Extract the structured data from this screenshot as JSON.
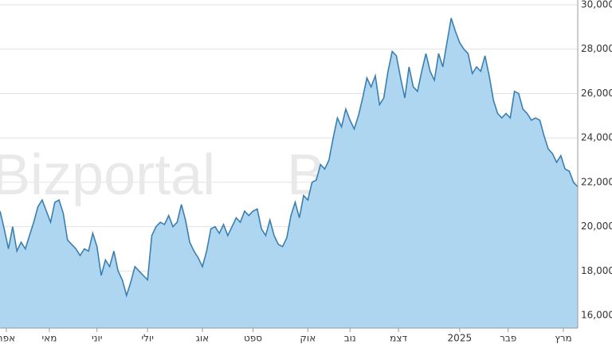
{
  "chart_data": {
    "type": "area",
    "watermark": "Bizportal",
    "x": [
      0,
      1,
      2,
      3,
      4,
      5,
      6,
      7,
      8,
      9,
      10,
      11,
      12,
      13,
      14,
      15,
      16,
      17,
      18,
      19,
      20,
      21,
      22,
      23,
      24,
      25,
      26,
      27,
      28,
      29,
      30,
      31,
      32,
      33,
      34,
      35,
      36,
      37,
      38,
      39,
      40,
      41,
      42,
      43,
      44,
      45,
      46,
      47,
      48,
      49,
      50,
      51,
      52,
      53,
      54,
      55,
      56,
      57,
      58,
      59,
      60,
      61,
      62,
      63,
      64,
      65,
      66,
      67,
      68,
      69,
      70,
      71,
      72,
      73,
      74,
      75,
      76,
      77,
      78,
      79,
      80,
      81,
      82,
      83,
      84,
      85,
      86,
      87,
      88,
      89,
      90,
      91,
      92,
      93,
      94,
      95,
      96,
      97,
      98,
      99,
      100,
      101,
      102,
      103,
      104,
      105,
      106,
      107,
      108,
      109,
      110,
      111,
      112,
      113,
      114,
      115,
      116,
      117,
      118,
      119,
      120,
      121,
      122,
      123,
      124,
      125,
      126,
      127,
      128,
      129,
      130,
      131,
      132,
      133,
      134,
      135,
      136,
      137
    ],
    "series": [
      {
        "color": "#3b7fb1",
        "fill": "#aed6f1",
        "values": [
          20700,
          19900,
          19000,
          20000,
          18900,
          19300,
          19000,
          19600,
          20200,
          20900,
          21200,
          20700,
          20200,
          21100,
          21200,
          20600,
          19400,
          19200,
          19000,
          18700,
          19000,
          18900,
          19700,
          19100,
          17800,
          18500,
          18200,
          18900,
          18000,
          17600,
          16900,
          17500,
          18200,
          18000,
          17800,
          17600,
          19600,
          20000,
          20200,
          20100,
          20500,
          20000,
          20200,
          21000,
          20300,
          19300,
          18900,
          18600,
          18200,
          18900,
          19900,
          20000,
          19700,
          20100,
          19600,
          20000,
          20400,
          20200,
          20700,
          20500,
          20700,
          20800,
          19900,
          19600,
          20300,
          19600,
          19200,
          19100,
          19500,
          20500,
          21100,
          20400,
          21400,
          21200,
          22000,
          22100,
          22800,
          22600,
          23000,
          24000,
          24900,
          24500,
          25300,
          24800,
          24400,
          25000,
          25800,
          26700,
          26300,
          26800,
          25500,
          25800,
          27000,
          27900,
          27700,
          26700,
          25800,
          27200,
          26300,
          26100,
          27000,
          27800,
          27000,
          26600,
          27800,
          27200,
          28300,
          29400,
          28800,
          28300,
          28000,
          27800,
          26900,
          27200,
          27000,
          27700,
          26800,
          25700,
          25100,
          24900,
          25100,
          24900,
          26100,
          26000,
          25300,
          25100,
          24800,
          24900,
          24800,
          24100,
          23500,
          23300,
          22900,
          23200,
          22600,
          22500,
          22000,
          21800
        ]
      }
    ],
    "xlim": [
      0,
      137
    ],
    "xticks": [
      {
        "value": 1.5,
        "label": "אפר"
      },
      {
        "value": 11.7,
        "label": "מאי"
      },
      {
        "value": 23,
        "label": "יוני"
      },
      {
        "value": 35,
        "label": "יולי"
      },
      {
        "value": 48,
        "label": "אוג"
      },
      {
        "value": 60,
        "label": "ספט"
      },
      {
        "value": 73,
        "label": "אוק"
      },
      {
        "value": 83,
        "label": "נוב"
      },
      {
        "value": 94.5,
        "label": "דצמ"
      },
      {
        "value": 109,
        "label": "2025"
      },
      {
        "value": 120.5,
        "label": "פבר"
      },
      {
        "value": 133.6,
        "label": "מרץ"
      }
    ],
    "ylim": [
      15430,
      30215
    ],
    "yticks": [
      {
        "value": 16000,
        "label": "16,000"
      },
      {
        "value": 18000,
        "label": "18,000"
      },
      {
        "value": 20000,
        "label": "20,000"
      },
      {
        "value": 22000,
        "label": "22,000"
      },
      {
        "value": 24000,
        "label": "24,000"
      },
      {
        "value": 26000,
        "label": "26,000"
      },
      {
        "value": 28000,
        "label": "28,000"
      },
      {
        "value": 30000,
        "label": "30,000"
      }
    ],
    "grid": true
  }
}
